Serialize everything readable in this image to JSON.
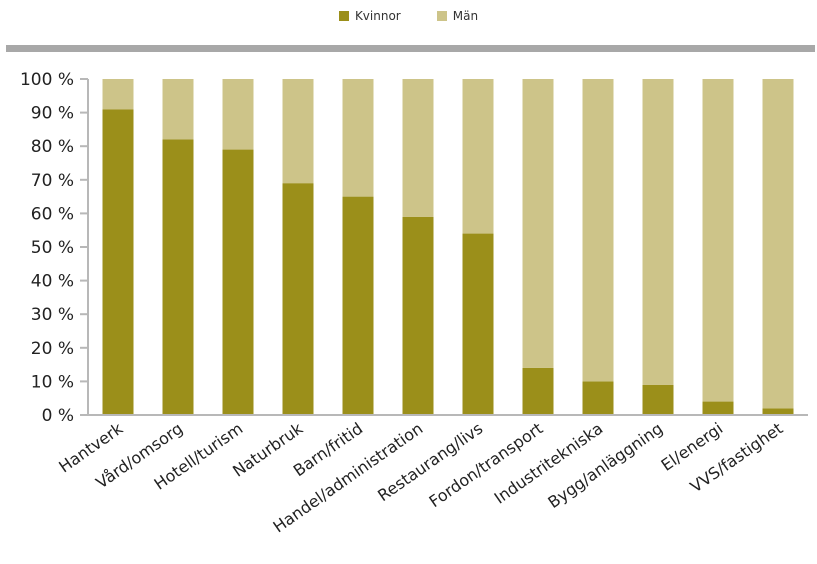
{
  "chart_data": {
    "type": "bar",
    "stacked": true,
    "categories": [
      "Hantverk",
      "Vård/omsorg",
      "Hotell/turism",
      "Naturbruk",
      "Barn/fritid",
      "Handel/administration",
      "Restaurang/livs",
      "Fordon/transport",
      "Industritekniska",
      "Bygg/anläggning",
      "El/energi",
      "VVS/fastighet"
    ],
    "series": [
      {
        "name": "Kvinnor",
        "color": "#9b8f1a",
        "values": [
          91,
          82,
          79,
          69,
          65,
          59,
          54,
          14,
          10,
          9,
          4,
          2
        ]
      },
      {
        "name": "Män",
        "color": "#cdc489",
        "values": [
          9,
          18,
          21,
          31,
          35,
          41,
          46,
          86,
          90,
          91,
          96,
          98
        ]
      }
    ],
    "ylim": [
      0,
      100
    ],
    "yticks": [
      0,
      10,
      20,
      30,
      40,
      50,
      60,
      70,
      80,
      90,
      100
    ],
    "ytick_suffix": " %",
    "grid": false,
    "legend_position": "top-center"
  }
}
